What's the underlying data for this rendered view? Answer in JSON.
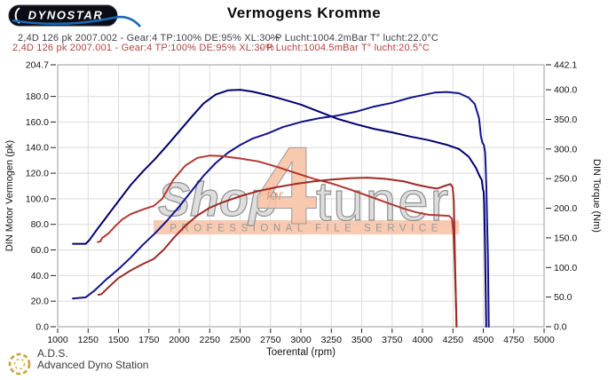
{
  "logo": {
    "text": "Dynostar"
  },
  "title": "Vermogens Kromme",
  "runs": [
    {
      "label": "2,4D 126 pk 2007.002 - Gear:4 TP:100% DE:95% XL:30%",
      "ambient": "- P Lucht:1004.2mBar T° lucht:22.0°C",
      "color": "#3f3f49"
    },
    {
      "label": "2,4D 126 pk 2007.001 - Gear:4 TP:100% DE:95% XL:30%",
      "ambient": "- P Lucht:1004.5mBar T° lucht:20.5°C",
      "color": "#b2423e"
    }
  ],
  "watermark": {
    "word_shop": "Shop",
    "word_for": "for",
    "word_4": "4",
    "word_tuner": "tuner",
    "banner": "PROFESSIONAL FILE SERVICE",
    "accent_color": "#f7c3a6",
    "gray_color": "#9a9a9a"
  },
  "footer": {
    "abbr": "A.D.S.",
    "name": "Advanced Dyno Station"
  },
  "chart_data": {
    "type": "line",
    "grid": true,
    "x_axis": {
      "label": "Toerental (rpm)",
      "min": 1000,
      "max": 5000,
      "ticks": [
        1000,
        1250,
        1500,
        1750,
        2000,
        2250,
        2500,
        2750,
        3000,
        3250,
        3500,
        3750,
        4000,
        4250,
        4500,
        4750,
        5000
      ]
    },
    "y_left": {
      "label": "DIN Motor Vermogen (pk)",
      "min": 0,
      "max": 204.7,
      "ticks": [
        0,
        20,
        40,
        60,
        80,
        100,
        120,
        140,
        160,
        180,
        204.7
      ]
    },
    "y_right": {
      "label": "DIN Torque (Nm)",
      "min": 0,
      "max": 442.1,
      "ticks": [
        0,
        50,
        100,
        150,
        200,
        250,
        300,
        350,
        400,
        442.1
      ]
    },
    "series": [
      {
        "name": "run 2007.002 torque (Nm)",
        "axis": "right",
        "color": "#00006e",
        "points": [
          [
            1125,
            140
          ],
          [
            1230,
            140
          ],
          [
            1260,
            146
          ],
          [
            1320,
            163
          ],
          [
            1400,
            185
          ],
          [
            1500,
            212
          ],
          [
            1600,
            239
          ],
          [
            1700,
            262
          ],
          [
            1800,
            283
          ],
          [
            1900,
            306
          ],
          [
            2000,
            330
          ],
          [
            2100,
            354
          ],
          [
            2200,
            377
          ],
          [
            2300,
            392
          ],
          [
            2400,
            399
          ],
          [
            2500,
            400
          ],
          [
            2600,
            397
          ],
          [
            2725,
            391
          ],
          [
            2850,
            384
          ],
          [
            3000,
            375
          ],
          [
            3150,
            363
          ],
          [
            3300,
            351
          ],
          [
            3450,
            342
          ],
          [
            3600,
            334
          ],
          [
            3750,
            328
          ],
          [
            3900,
            321
          ],
          [
            4050,
            315
          ],
          [
            4200,
            307
          ],
          [
            4300,
            300
          ],
          [
            4380,
            287
          ],
          [
            4440,
            268
          ],
          [
            4470,
            254
          ],
          [
            4487,
            248
          ],
          [
            4497,
            232
          ],
          [
            4503,
            228
          ],
          [
            4507,
            207
          ],
          [
            4513,
            150
          ],
          [
            4519,
            70
          ],
          [
            4524,
            0
          ]
        ]
      },
      {
        "name": "run 2007.002 vermogen (pk)",
        "axis": "left",
        "color": "#12128c",
        "points": [
          [
            1125,
            22
          ],
          [
            1230,
            23
          ],
          [
            1300,
            28
          ],
          [
            1400,
            37
          ],
          [
            1500,
            45
          ],
          [
            1600,
            54
          ],
          [
            1700,
            64
          ],
          [
            1800,
            73
          ],
          [
            1900,
            83
          ],
          [
            2000,
            94
          ],
          [
            2100,
            106
          ],
          [
            2200,
            118
          ],
          [
            2300,
            128
          ],
          [
            2400,
            136
          ],
          [
            2500,
            142
          ],
          [
            2600,
            147
          ],
          [
            2725,
            151
          ],
          [
            2850,
            156
          ],
          [
            3000,
            160
          ],
          [
            3150,
            163
          ],
          [
            3300,
            165
          ],
          [
            3450,
            168
          ],
          [
            3600,
            172
          ],
          [
            3750,
            175
          ],
          [
            3900,
            179
          ],
          [
            4000,
            181
          ],
          [
            4100,
            183
          ],
          [
            4200,
            183.5
          ],
          [
            4300,
            182.5
          ],
          [
            4380,
            179
          ],
          [
            4430,
            174
          ],
          [
            4465,
            163
          ],
          [
            4480,
            149
          ],
          [
            4492,
            144
          ],
          [
            4505,
            142
          ],
          [
            4515,
            136
          ],
          [
            4525,
            110
          ],
          [
            4538,
            55
          ],
          [
            4545,
            0
          ]
        ]
      },
      {
        "name": "run 2007.001 torque (Nm)",
        "axis": "right",
        "color": "#b23832",
        "points": [
          [
            1330,
            143
          ],
          [
            1352,
            144
          ],
          [
            1366,
            150
          ],
          [
            1382,
            152
          ],
          [
            1420,
            158
          ],
          [
            1470,
            169
          ],
          [
            1530,
            181
          ],
          [
            1600,
            190
          ],
          [
            1700,
            198
          ],
          [
            1790,
            204
          ],
          [
            1860,
            216
          ],
          [
            1950,
            248
          ],
          [
            2050,
            272
          ],
          [
            2150,
            285
          ],
          [
            2250,
            289
          ],
          [
            2350,
            288
          ],
          [
            2500,
            284
          ],
          [
            2650,
            279
          ],
          [
            2800,
            270
          ],
          [
            2950,
            260
          ],
          [
            3100,
            250
          ],
          [
            3250,
            242
          ],
          [
            3400,
            232
          ],
          [
            3550,
            221
          ],
          [
            3700,
            210
          ],
          [
            3850,
            199
          ],
          [
            3950,
            193
          ],
          [
            4050,
            189
          ],
          [
            4150,
            188
          ],
          [
            4220,
            187
          ],
          [
            4243,
            182
          ],
          [
            4254,
            158
          ],
          [
            4264,
            110
          ],
          [
            4273,
            55
          ],
          [
            4280,
            0
          ]
        ]
      },
      {
        "name": "run 2007.001 vermogen (pk)",
        "axis": "left",
        "color": "#9c2a24",
        "points": [
          [
            1335,
            25
          ],
          [
            1360,
            25.5
          ],
          [
            1420,
            31
          ],
          [
            1500,
            38
          ],
          [
            1600,
            44
          ],
          [
            1700,
            49
          ],
          [
            1790,
            53
          ],
          [
            1870,
            60
          ],
          [
            1950,
            69
          ],
          [
            2050,
            79
          ],
          [
            2150,
            87
          ],
          [
            2250,
            93
          ],
          [
            2350,
            97
          ],
          [
            2500,
            102
          ],
          [
            2650,
            106
          ],
          [
            2800,
            109
          ],
          [
            2950,
            111.5
          ],
          [
            3100,
            113.5
          ],
          [
            3250,
            115
          ],
          [
            3400,
            116
          ],
          [
            3550,
            116.5
          ],
          [
            3700,
            115.5
          ],
          [
            3850,
            113.5
          ],
          [
            3950,
            111
          ],
          [
            4050,
            109
          ],
          [
            4120,
            108
          ],
          [
            4180,
            110
          ],
          [
            4230,
            111.5
          ],
          [
            4248,
            109
          ],
          [
            4258,
            98
          ],
          [
            4266,
            60
          ],
          [
            4274,
            25
          ],
          [
            4280,
            0
          ]
        ]
      }
    ]
  }
}
